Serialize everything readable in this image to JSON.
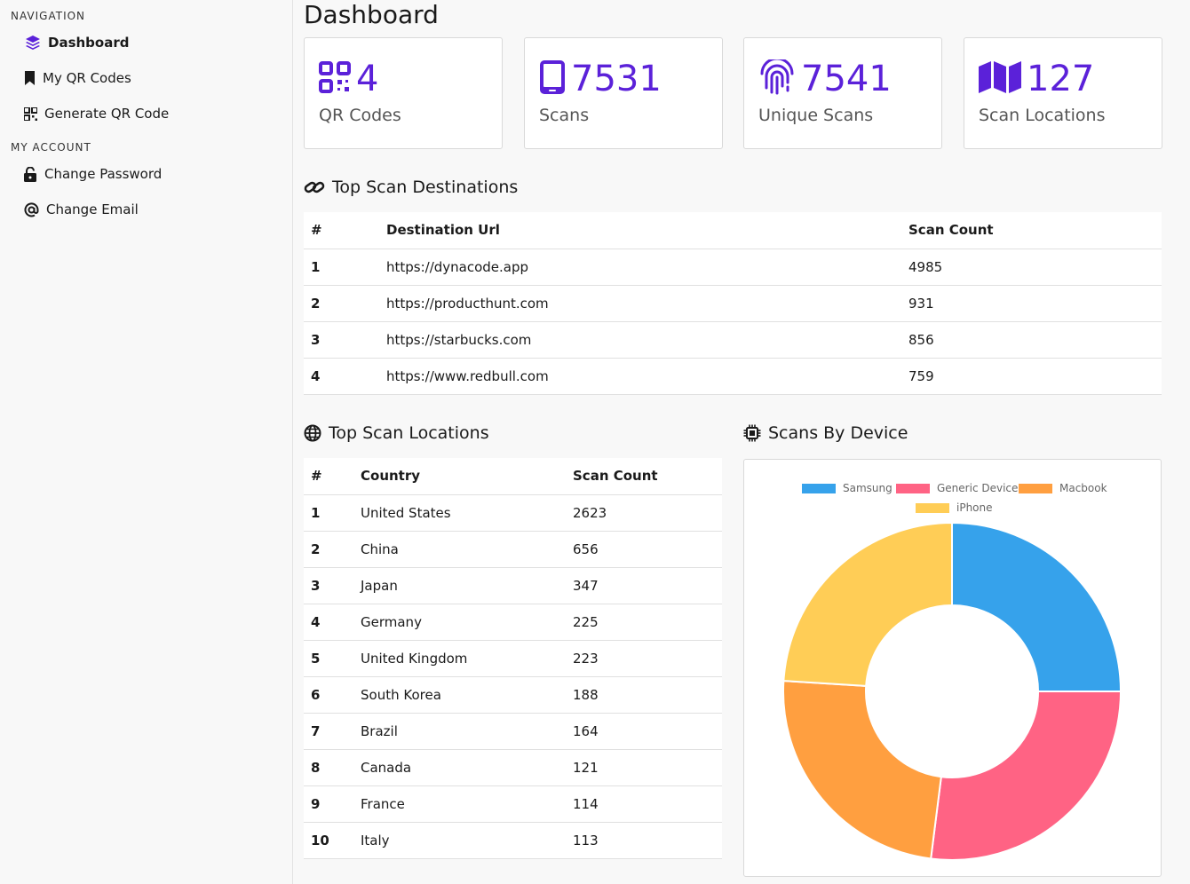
{
  "sidebar": {
    "navigation_label": "NAVIGATION",
    "account_label": "MY ACCOUNT",
    "items": {
      "dashboard": "Dashboard",
      "my_qr_codes": "My QR Codes",
      "generate_qr_code": "Generate QR Code",
      "change_password": "Change Password",
      "change_email": "Change Email"
    }
  },
  "page": {
    "title": "Dashboard"
  },
  "stats": {
    "qr_codes": {
      "value": "4",
      "label": "QR Codes"
    },
    "scans": {
      "value": "7531",
      "label": "Scans"
    },
    "unique_scans": {
      "value": "7541",
      "label": "Unique Scans"
    },
    "scan_locations": {
      "value": "127",
      "label": "Scan Locations"
    }
  },
  "colors": {
    "accent": "#5b21d9",
    "samsung": "#36a2eb",
    "generic": "#ff6384",
    "macbook": "#ff9f40",
    "iphone": "#ffcd56"
  },
  "destinations": {
    "title": "Top Scan Destinations",
    "headers": [
      "#",
      "Destination Url",
      "Scan Count"
    ],
    "rows": [
      [
        "1",
        "https://dynacode.app",
        "4985"
      ],
      [
        "2",
        "https://producthunt.com",
        "931"
      ],
      [
        "3",
        "https://starbucks.com",
        "856"
      ],
      [
        "4",
        "https://www.redbull.com",
        "759"
      ]
    ]
  },
  "locations": {
    "title": "Top Scan Locations",
    "headers": [
      "#",
      "Country",
      "Scan Count"
    ],
    "rows": [
      [
        "1",
        "United States",
        "2623"
      ],
      [
        "2",
        "China",
        "656"
      ],
      [
        "3",
        "Japan",
        "347"
      ],
      [
        "4",
        "Germany",
        "225"
      ],
      [
        "5",
        "United Kingdom",
        "223"
      ],
      [
        "6",
        "South Korea",
        "188"
      ],
      [
        "7",
        "Brazil",
        "164"
      ],
      [
        "8",
        "Canada",
        "121"
      ],
      [
        "9",
        "France",
        "114"
      ],
      [
        "10",
        "Italy",
        "113"
      ]
    ]
  },
  "device_chart": {
    "title": "Scans By Device"
  },
  "chart_data": {
    "type": "pie",
    "title": "Scans By Device",
    "donut": true,
    "legend_position": "top",
    "categories": [
      "Samsung",
      "Generic Device",
      "Macbook",
      "iPhone"
    ],
    "values": [
      25,
      27,
      24,
      24
    ]
  }
}
